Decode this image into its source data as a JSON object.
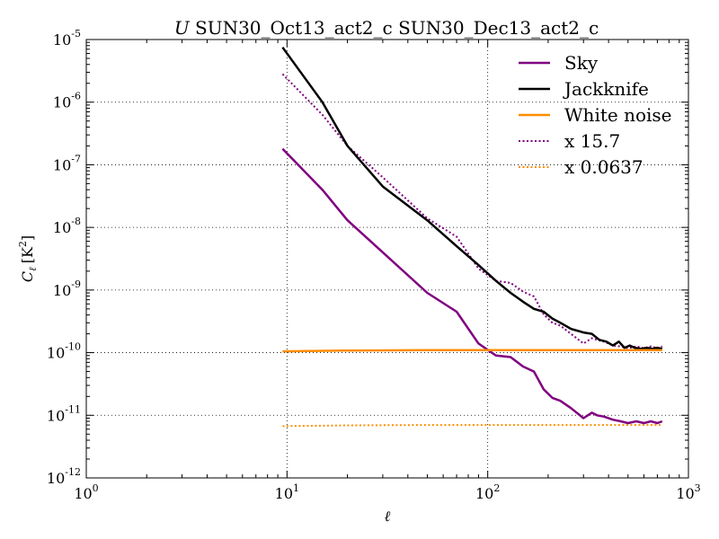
{
  "chart_data": {
    "type": "line",
    "title": "U SUN30_Oct13_act2_c SUN30_Dec13_act2_c",
    "title_italic_prefix": "U",
    "title_rest": " SUN30_Oct13_act2_c SUN30_Dec13_act2_c",
    "xlabel": "ℓ",
    "ylabel_main": "C",
    "ylabel_sub": "ℓ",
    "ylabel_unit": "[K",
    "ylabel_unit_sup": "2",
    "ylabel_unit_end": "]",
    "x_scale": "log",
    "y_scale": "log",
    "xlim": [
      1,
      1000
    ],
    "ylim": [
      1e-12,
      1e-05
    ],
    "grid": true,
    "legend_position": "top-right",
    "x_ticks": [
      {
        "value": 1,
        "base": "10",
        "exp": "0"
      },
      {
        "value": 10,
        "base": "10",
        "exp": "1"
      },
      {
        "value": 100,
        "base": "10",
        "exp": "2"
      },
      {
        "value": 1000,
        "base": "10",
        "exp": "3"
      }
    ],
    "y_ticks": [
      {
        "value": 1e-12,
        "base": "10",
        "exp": "-12"
      },
      {
        "value": 1e-11,
        "base": "10",
        "exp": "-11"
      },
      {
        "value": 1e-10,
        "base": "10",
        "exp": "-10"
      },
      {
        "value": 1e-09,
        "base": "10",
        "exp": "-9"
      },
      {
        "value": 1e-08,
        "base": "10",
        "exp": "-8"
      },
      {
        "value": 1e-07,
        "base": "10",
        "exp": "-7"
      },
      {
        "value": 1e-06,
        "base": "10",
        "exp": "-6"
      },
      {
        "value": 1e-05,
        "base": "10",
        "exp": "-5"
      }
    ],
    "series": [
      {
        "name": "Sky",
        "color": "#800080",
        "style": "solid",
        "x": [
          9.5,
          15,
          20,
          30,
          50,
          70,
          90,
          110,
          130,
          150,
          170,
          190,
          210,
          230,
          260,
          300,
          330,
          350,
          380,
          420,
          460,
          500,
          550,
          600,
          650,
          700,
          740
        ],
        "y": [
          1.8e-07,
          4e-08,
          1.3e-08,
          4e-09,
          9e-10,
          4.5e-10,
          1.4e-10,
          9e-11,
          8.5e-11,
          6e-11,
          5e-11,
          2.6e-11,
          1.9e-11,
          1.7e-11,
          1.3e-11,
          9e-12,
          1.1e-11,
          1e-11,
          9.5e-12,
          8.5e-12,
          8e-12,
          7.5e-12,
          8e-12,
          7.5e-12,
          8e-12,
          7.5e-12,
          8e-12
        ]
      },
      {
        "name": "Jackknife",
        "color": "#000000",
        "style": "solid",
        "x": [
          9.5,
          15,
          20,
          30,
          50,
          70,
          90,
          110,
          130,
          150,
          170,
          190,
          210,
          230,
          260,
          300,
          330,
          360,
          390,
          420,
          450,
          480,
          510,
          540,
          580,
          620,
          660,
          700,
          740
        ],
        "y": [
          7.5e-06,
          1e-06,
          2e-07,
          4.5e-08,
          1.3e-08,
          5e-09,
          2.5e-09,
          1.4e-09,
          9e-10,
          6.5e-10,
          5e-10,
          4.5e-10,
          3.5e-10,
          3e-10,
          2.4e-10,
          2.1e-10,
          2e-10,
          1.6e-10,
          1.5e-10,
          1.3e-10,
          1.5e-10,
          1.2e-10,
          1.3e-10,
          1.2e-10,
          1.15e-10,
          1.2e-10,
          1.15e-10,
          1.2e-10,
          1.15e-10
        ]
      },
      {
        "name": "White noise",
        "color": "#ff8c00",
        "style": "solid",
        "x": [
          9.5,
          20,
          50,
          100,
          200,
          400,
          740
        ],
        "y": [
          1.05e-10,
          1.08e-10,
          1.1e-10,
          1.1e-10,
          1.1e-10,
          1.1e-10,
          1.1e-10
        ]
      },
      {
        "name": "x 15.7",
        "color": "#800080",
        "style": "dotted",
        "x": [
          9.5,
          15,
          20,
          30,
          50,
          70,
          90,
          110,
          130,
          150,
          170,
          190,
          210,
          230,
          260,
          300,
          330,
          350,
          380,
          420,
          460,
          500,
          550,
          600,
          650,
          700,
          740
        ],
        "y": [
          2.8e-06,
          6.3e-07,
          2e-07,
          6.3e-08,
          1.4e-08,
          7.1e-09,
          2.2e-09,
          1.4e-09,
          1.3e-09,
          9.4e-10,
          7.9e-10,
          4.1e-10,
          3e-10,
          2.7e-10,
          2e-10,
          1.4e-10,
          1.7e-10,
          1.6e-10,
          1.5e-10,
          1.3e-10,
          1.26e-10,
          1.18e-10,
          1.26e-10,
          1.18e-10,
          1.26e-10,
          1.18e-10,
          1.26e-10
        ]
      },
      {
        "name": "x 0.0637",
        "color": "#ff8c00",
        "style": "dotted",
        "x": [
          9.5,
          20,
          50,
          100,
          200,
          400,
          740
        ],
        "y": [
          6.7e-12,
          6.9e-12,
          7e-12,
          7e-12,
          7e-12,
          7e-12,
          7e-12
        ]
      }
    ]
  }
}
